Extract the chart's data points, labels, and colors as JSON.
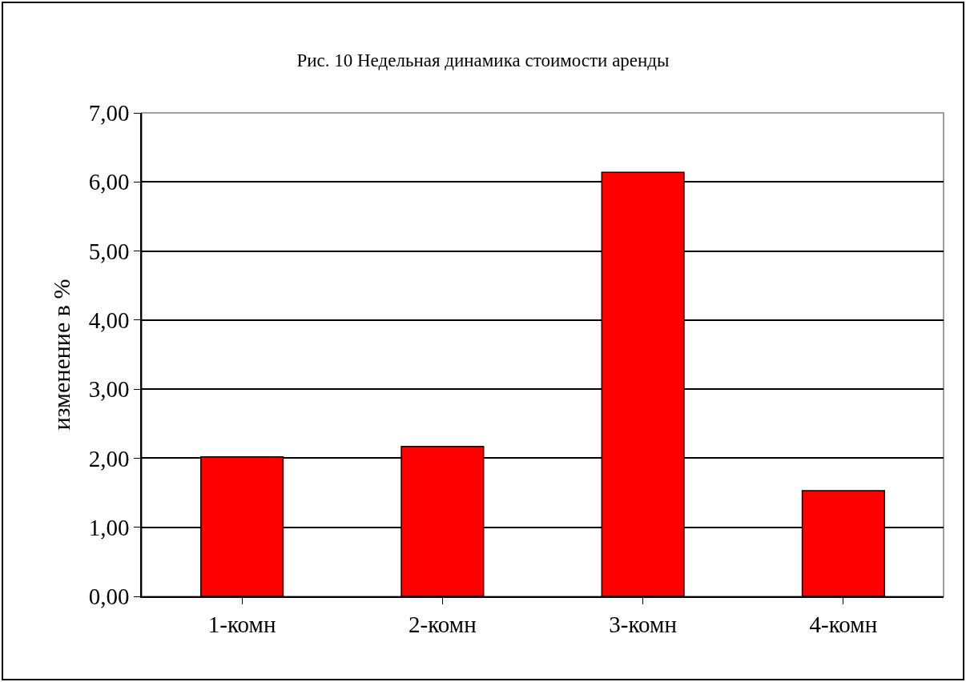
{
  "chart_data": {
    "type": "bar",
    "title": "Рис. 10 Недельная динамика стоимости аренды",
    "ylabel": "изменение в %",
    "categories": [
      "1-комн",
      "2-комн",
      "3-комн",
      "4-комн"
    ],
    "values": [
      2.02,
      2.17,
      6.14,
      1.53
    ],
    "color": "#ff0000",
    "ylim": [
      0,
      7
    ],
    "yticks": [
      {
        "value": 0,
        "label": "0,00"
      },
      {
        "value": 1,
        "label": "1,00"
      },
      {
        "value": 2,
        "label": "2,00"
      },
      {
        "value": 3,
        "label": "3,00"
      },
      {
        "value": 4,
        "label": "4,00"
      },
      {
        "value": 5,
        "label": "5,00"
      },
      {
        "value": 6,
        "label": "6,00"
      },
      {
        "value": 7,
        "label": "7,00"
      }
    ],
    "grid": "y"
  }
}
